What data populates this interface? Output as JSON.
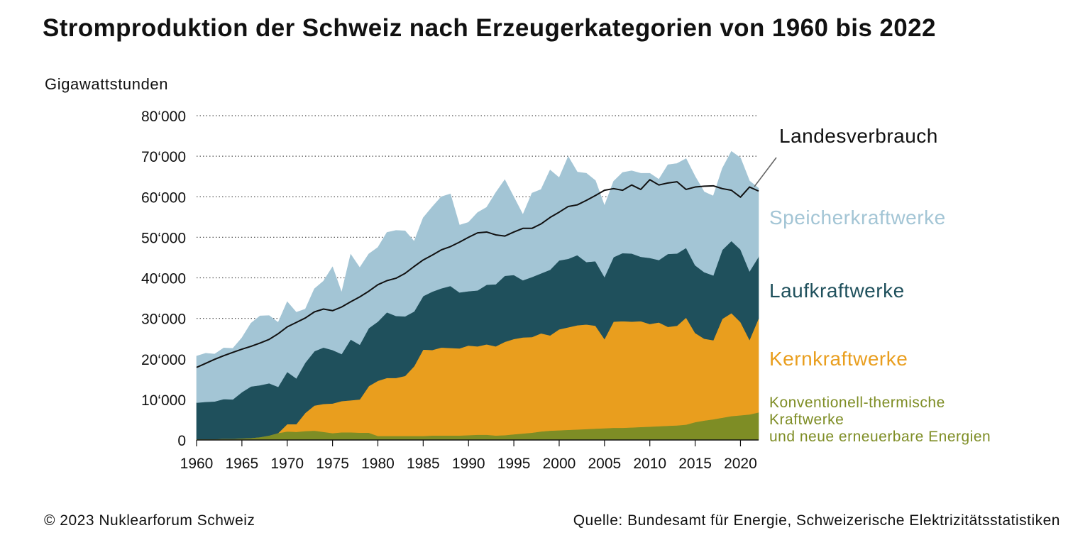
{
  "chart_data": {
    "type": "area",
    "stacked": true,
    "title": "Stromproduktion der Schweiz nach Erzeugerkategorien von 1960 bis 2022",
    "ylabel": "Gigawattstunden",
    "xlabel": "",
    "xlim": [
      1960,
      2022
    ],
    "ylim": [
      0,
      80000
    ],
    "x_ticks": [
      "1960",
      "1965",
      "1970",
      "1975",
      "1980",
      "1985",
      "1990",
      "1995",
      "2000",
      "2005",
      "2010",
      "2015",
      "2020"
    ],
    "y_ticks": [
      "0",
      "10‘000",
      "20‘000",
      "30‘000",
      "40‘000",
      "50‘000",
      "60‘000",
      "70‘000",
      "80‘000"
    ],
    "grid": "horizontal-dotted",
    "years": [
      1960,
      1961,
      1962,
      1963,
      1964,
      1965,
      1966,
      1967,
      1968,
      1969,
      1970,
      1971,
      1972,
      1973,
      1974,
      1975,
      1976,
      1977,
      1978,
      1979,
      1980,
      1981,
      1982,
      1983,
      1984,
      1985,
      1986,
      1987,
      1988,
      1989,
      1990,
      1991,
      1992,
      1993,
      1994,
      1995,
      1996,
      1997,
      1998,
      1999,
      2000,
      2001,
      2002,
      2003,
      2004,
      2005,
      2006,
      2007,
      2008,
      2009,
      2010,
      2011,
      2012,
      2013,
      2014,
      2015,
      2016,
      2017,
      2018,
      2019,
      2020,
      2021,
      2022
    ],
    "series": [
      {
        "name": "Konventionell-thermische Kraftwerke und neue erneuerbare Energien",
        "color": "#7e8d25",
        "values": [
          200,
          200,
          200,
          300,
          300,
          400,
          500,
          700,
          1100,
          1700,
          2100,
          2000,
          2200,
          2300,
          2000,
          1700,
          1900,
          1900,
          1800,
          1800,
          1000,
          1000,
          1000,
          1000,
          1000,
          1000,
          1100,
          1100,
          1100,
          1100,
          1200,
          1300,
          1300,
          1100,
          1200,
          1400,
          1600,
          1800,
          2100,
          2300,
          2400,
          2500,
          2600,
          2700,
          2800,
          2900,
          3000,
          3000,
          3100,
          3200,
          3300,
          3400,
          3500,
          3600,
          3800,
          4400,
          4800,
          5100,
          5500,
          5900,
          6100,
          6300,
          6800
        ]
      },
      {
        "name": "Kernkraftwerke",
        "color": "#e99e1e",
        "values": [
          0,
          0,
          0,
          0,
          0,
          0,
          0,
          0,
          0,
          0,
          1800,
          1900,
          4500,
          6200,
          6900,
          7300,
          7700,
          7900,
          8200,
          11500,
          13600,
          14300,
          14300,
          14800,
          17200,
          21300,
          21100,
          21700,
          21600,
          21500,
          22100,
          21800,
          22300,
          22000,
          23000,
          23500,
          23700,
          23600,
          24200,
          23500,
          24900,
          25300,
          25700,
          25800,
          25400,
          22000,
          26200,
          26300,
          26100,
          26100,
          25300,
          25600,
          24400,
          24600,
          26400,
          22000,
          20200,
          19500,
          24400,
          25400,
          23000,
          18400,
          23200
        ]
      },
      {
        "name": "Laufkraftwerke",
        "color": "#1f505c",
        "values": [
          9000,
          9200,
          9300,
          9800,
          9700,
          11400,
          12700,
          12800,
          12900,
          11400,
          12900,
          11300,
          12400,
          13400,
          13900,
          13200,
          11600,
          15000,
          13500,
          14300,
          14600,
          16200,
          15300,
          14700,
          13500,
          13200,
          14400,
          14600,
          15300,
          13800,
          13400,
          13800,
          14700,
          15300,
          16300,
          15800,
          14100,
          14800,
          14800,
          16200,
          17000,
          16900,
          17300,
          15400,
          15900,
          15300,
          15900,
          16800,
          16800,
          15900,
          16300,
          15400,
          18000,
          17800,
          17200,
          16700,
          16400,
          16000,
          17000,
          17800,
          17900,
          16900,
          15200
        ]
      },
      {
        "name": "Speicherkraftwerke",
        "color": "#a3c5d5",
        "values": [
          11500,
          12000,
          11700,
          12600,
          12600,
          13400,
          15600,
          17100,
          16700,
          15900,
          17300,
          16300,
          13200,
          15400,
          16400,
          20500,
          15200,
          21000,
          19000,
          18300,
          18300,
          19700,
          21100,
          21100,
          17300,
          19300,
          20900,
          22600,
          22700,
          16600,
          17000,
          19200,
          19100,
          22600,
          23700,
          19200,
          16200,
          20700,
          20700,
          24600,
          20400,
          25200,
          20500,
          21900,
          19900,
          17600,
          18700,
          19900,
          20400,
          20600,
          20900,
          19900,
          22000,
          22200,
          22000,
          21900,
          19800,
          19600,
          20100,
          22100,
          22600,
          22300,
          16900
        ]
      }
    ],
    "line_series": {
      "name": "Landesverbrauch",
      "color": "#111111",
      "values": [
        17900,
        18900,
        19900,
        20800,
        21600,
        22400,
        23100,
        23900,
        24800,
        26200,
        27900,
        29000,
        30100,
        31600,
        32300,
        31900,
        32800,
        34100,
        35300,
        36700,
        38300,
        39300,
        39900,
        41100,
        42800,
        44400,
        45600,
        46900,
        47700,
        48800,
        50000,
        51100,
        51300,
        50600,
        50300,
        51300,
        52200,
        52200,
        53300,
        54900,
        56200,
        57600,
        58000,
        59100,
        60300,
        61600,
        62000,
        61600,
        62900,
        61800,
        64200,
        62900,
        63400,
        63700,
        61800,
        62400,
        62600,
        62700,
        62000,
        61600,
        59900,
        62400,
        61400
      ]
    },
    "legend": [
      {
        "label": "Landesverbrauch",
        "color": "#111111",
        "lines": [
          "Landesverbrauch"
        ]
      },
      {
        "label": "Speicherkraftwerke",
        "color": "#a3c5d5",
        "lines": [
          "Speicherkraftwerke"
        ]
      },
      {
        "label": "Laufkraftwerke",
        "color": "#1f505c",
        "lines": [
          "Laufkraftwerke"
        ]
      },
      {
        "label": "Kernkraftwerke",
        "color": "#e99e1e",
        "lines": [
          "Kernkraftwerke"
        ]
      },
      {
        "label": "Konventionell-thermische Kraftwerke und neue erneuerbare Energien",
        "color": "#7e8d25",
        "lines": [
          "Konventionell-thermische",
          "Kraftwerke",
          "und neue erneuerbare Energien"
        ]
      }
    ],
    "legend_placement": "right"
  },
  "footer": {
    "copyright": "© 2023 Nuklearforum Schweiz",
    "source": "Quelle: Bundesamt für Energie, Schweizerische Elektrizitätsstatistiken"
  }
}
